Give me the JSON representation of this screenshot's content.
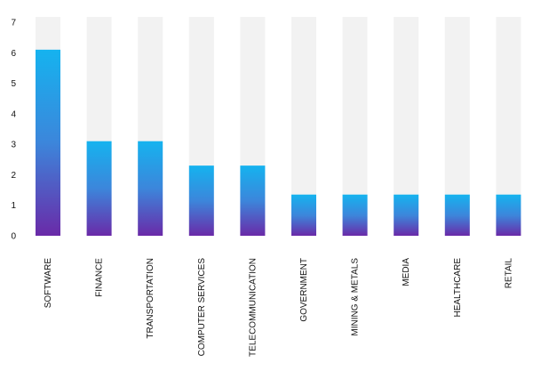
{
  "chart_data": {
    "type": "bar",
    "categories": [
      "SOFTWARE",
      "FINANCE",
      "TRANSPORTATION",
      "COMPUTER SERVICES",
      "TELECOMMUNICATION",
      "GOVERNMENT",
      "MINING & METALS",
      "MEDIA",
      "HEALTHCARE",
      "RETAIL"
    ],
    "values": [
      6.1,
      3.1,
      3.1,
      2.3,
      2.3,
      1.35,
      1.35,
      1.35,
      1.35,
      1.35
    ],
    "ylim": [
      0,
      7
    ],
    "yticks": [
      0,
      1,
      2,
      3,
      4,
      5,
      6,
      7
    ],
    "title": "",
    "xlabel": "",
    "ylabel": "",
    "grid": false,
    "background_bars": true,
    "colors": {
      "bar_top": "#15b3ef",
      "bar_mid": "#3c86db",
      "bar_bottom": "#6a2aa8",
      "track": "#f2f2f2",
      "text": "#111111"
    }
  }
}
